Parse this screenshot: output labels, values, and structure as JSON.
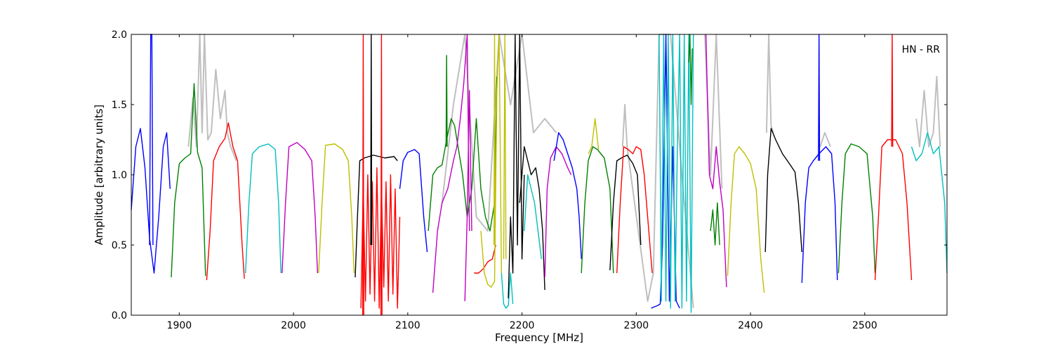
{
  "chart_data": {
    "type": "line",
    "title": "",
    "xlabel": "Frequency [MHz]",
    "ylabel": "Amplitude [arbitrary units]",
    "xlim": [
      1858,
      2572
    ],
    "ylim": [
      0.0,
      2.0
    ],
    "x_ticks": [
      1900,
      2000,
      2100,
      2200,
      2300,
      2400,
      2500
    ],
    "x_tick_labels": [
      "1900",
      "2000",
      "2100",
      "2200",
      "2300",
      "2400",
      "2500"
    ],
    "y_ticks": [
      0.0,
      0.5,
      1.0,
      1.5,
      2.0
    ],
    "y_tick_labels": [
      "0.0",
      "0.5",
      "1.0",
      "1.5",
      "2.0"
    ],
    "annotation": "HN - RR",
    "grid": false,
    "legend": "none",
    "colors": {
      "blue": "#0000ff",
      "green": "#008000",
      "red": "#ff0000",
      "cyan": "#00bfbf",
      "magenta": "#bf00bf",
      "yellow": "#bfbf00",
      "black": "#000000",
      "reference": "#bfbfbf"
    },
    "series": [
      {
        "color": "blue",
        "x": [
          1858,
          1862,
          1866,
          1870,
          1874,
          1878,
          1882,
          1886,
          1889,
          1892
        ],
        "y": [
          0.75,
          1.2,
          1.33,
          1.05,
          0.55,
          0.3,
          0.7,
          1.2,
          1.3,
          0.9
        ]
      },
      {
        "color": "blue",
        "x": [
          1874,
          1875,
          1876,
          1877
        ],
        "y": [
          0.5,
          2.0,
          2.0,
          0.5
        ]
      },
      {
        "color": "green",
        "x": [
          1893,
          1896,
          1900,
          1905,
          1910,
          1913,
          1916,
          1920,
          1923
        ],
        "y": [
          0.27,
          0.8,
          1.08,
          1.12,
          1.15,
          1.65,
          1.16,
          1.05,
          0.28
        ]
      },
      {
        "color": "red",
        "x": [
          1924,
          1927,
          1930,
          1935,
          1940,
          1943,
          1947,
          1951,
          1955,
          1957
        ],
        "y": [
          0.25,
          0.6,
          1.1,
          1.2,
          1.26,
          1.37,
          1.2,
          1.1,
          0.5,
          0.26
        ]
      },
      {
        "color": "cyan",
        "x": [
          1958,
          1961,
          1964,
          1970,
          1978,
          1984,
          1987,
          1989
        ],
        "y": [
          0.3,
          0.8,
          1.15,
          1.2,
          1.22,
          1.18,
          0.8,
          0.3
        ]
      },
      {
        "color": "magenta",
        "x": [
          1990,
          1993,
          1996,
          2003,
          2010,
          2016,
          2019,
          2021
        ],
        "y": [
          0.3,
          0.8,
          1.2,
          1.23,
          1.18,
          1.1,
          0.7,
          0.3
        ]
      },
      {
        "color": "yellow",
        "x": [
          2022,
          2025,
          2028,
          2036,
          2043,
          2048,
          2051,
          2053
        ],
        "y": [
          0.3,
          0.8,
          1.21,
          1.22,
          1.18,
          1.1,
          0.7,
          0.3
        ]
      },
      {
        "color": "black",
        "x": [
          2054,
          2056,
          2058,
          2062,
          2070,
          2080,
          2088,
          2091
        ],
        "y": [
          0.27,
          0.7,
          1.1,
          1.12,
          1.14,
          1.12,
          1.13,
          1.1
        ]
      },
      {
        "color": "red",
        "x": [
          2059,
          2061,
          2063,
          2065,
          2067,
          2069,
          2071,
          2073,
          2075,
          2077,
          2079,
          2081,
          2083,
          2085,
          2087,
          2089,
          2091,
          2093
        ],
        "y": [
          0.05,
          0.9,
          0.1,
          1.0,
          0.15,
          0.95,
          0.1,
          1.05,
          0.05,
          0.9,
          0.2,
          0.95,
          0.1,
          1.0,
          0.15,
          0.9,
          0.05,
          0.7
        ]
      },
      {
        "color": "red",
        "x": [
          2060.5,
          2061,
          2061.5
        ],
        "y": [
          0.0,
          2.0,
          0.0
        ]
      },
      {
        "color": "black",
        "x": [
          2067.5,
          2068,
          2068.5
        ],
        "y": [
          0.5,
          2.0,
          0.5
        ]
      },
      {
        "color": "red",
        "x": [
          2076.5,
          2077,
          2077.5
        ],
        "y": [
          0.0,
          2.0,
          0.0
        ]
      },
      {
        "color": "blue",
        "x": [
          2093,
          2096,
          2100,
          2106,
          2110,
          2114,
          2117
        ],
        "y": [
          0.9,
          1.1,
          1.16,
          1.18,
          1.15,
          0.7,
          0.45
        ]
      },
      {
        "color": "green",
        "x": [
          2118,
          2122,
          2126,
          2130,
          2134,
          2138,
          2141,
          2145,
          2148,
          2152
        ],
        "y": [
          0.6,
          1.0,
          1.05,
          1.07,
          1.25,
          1.4,
          1.35,
          1.15,
          1.0,
          0.7
        ]
      },
      {
        "color": "green",
        "x": [
          2133.5,
          2134,
          2134.5
        ],
        "y": [
          1.2,
          1.85,
          1.2
        ]
      },
      {
        "color": "magenta",
        "x": [
          2122,
          2126,
          2130,
          2135,
          2140,
          2143,
          2146,
          2149,
          2152,
          2154
        ],
        "y": [
          0.16,
          0.6,
          0.8,
          0.9,
          1.1,
          1.2,
          1.4,
          1.65,
          2.0,
          0.6
        ]
      },
      {
        "color": "green",
        "x": [
          2152,
          2156,
          2160,
          2164,
          2168,
          2172,
          2176,
          2178
        ],
        "y": [
          0.7,
          0.9,
          1.4,
          0.9,
          0.7,
          0.6,
          0.8,
          1.7
        ]
      },
      {
        "color": "magenta",
        "x": [
          2150,
          2152,
          2154,
          2156
        ],
        "y": [
          0.1,
          0.7,
          1.6,
          0.6
        ]
      },
      {
        "color": "red",
        "x": [
          2158,
          2162,
          2166,
          2170,
          2174,
          2177
        ],
        "y": [
          0.3,
          0.3,
          0.33,
          0.38,
          0.4,
          0.5
        ]
      },
      {
        "color": "yellow",
        "x": [
          2164,
          2167,
          2170,
          2173,
          2176,
          2178,
          2180,
          2182
        ],
        "y": [
          0.6,
          0.3,
          0.22,
          0.2,
          0.24,
          1.6,
          2.0,
          0.3
        ]
      },
      {
        "color": "yellow",
        "x": [
          2175.5,
          2176,
          2176.5
        ],
        "y": [
          0.5,
          2.0,
          0.5
        ]
      },
      {
        "color": "cyan",
        "x": [
          2182,
          2184,
          2186,
          2188,
          2190,
          2192
        ],
        "y": [
          0.3,
          0.08,
          0.05,
          0.07,
          0.3,
          0.08
        ]
      },
      {
        "color": "yellow",
        "x": [
          2184,
          2185,
          2186
        ],
        "y": [
          0.4,
          2.0,
          0.4
        ]
      },
      {
        "color": "black",
        "x": [
          2188,
          2190,
          2192,
          2194,
          2196,
          2198,
          2200,
          2202
        ],
        "y": [
          0.12,
          0.7,
          0.3,
          2.0,
          0.5,
          2.0,
          0.4,
          1.0
        ]
      },
      {
        "color": "black",
        "x": [
          2198,
          2202,
          2205,
          2208,
          2212,
          2215,
          2218,
          2220
        ],
        "y": [
          0.8,
          1.2,
          1.1,
          1.0,
          1.05,
          0.9,
          0.6,
          0.18
        ]
      },
      {
        "color": "cyan",
        "x": [
          2202,
          2205,
          2208,
          2211,
          2214,
          2217
        ],
        "y": [
          0.6,
          1.0,
          0.9,
          0.8,
          0.6,
          0.4
        ]
      },
      {
        "color": "magenta",
        "x": [
          2220,
          2222,
          2225,
          2230,
          2235,
          2240,
          2243
        ],
        "y": [
          0.27,
          0.9,
          1.12,
          1.2,
          1.15,
          1.05,
          1.0
        ]
      },
      {
        "color": "blue",
        "x": [
          2228,
          2232,
          2236,
          2240,
          2244,
          2248,
          2250,
          2252
        ],
        "y": [
          1.1,
          1.3,
          1.25,
          1.15,
          1.05,
          0.9,
          0.7,
          0.4
        ]
      },
      {
        "color": "green",
        "x": [
          2252,
          2255,
          2258,
          2262,
          2266,
          2272,
          2277,
          2280
        ],
        "y": [
          0.3,
          0.8,
          1.1,
          1.2,
          1.18,
          1.12,
          0.9,
          0.3
        ]
      },
      {
        "color": "yellow",
        "x": [
          2258,
          2261,
          2264,
          2267
        ],
        "y": [
          1.15,
          1.2,
          1.4,
          1.18
        ]
      },
      {
        "color": "black",
        "x": [
          2277,
          2280,
          2283,
          2287,
          2292,
          2297,
          2301,
          2304
        ],
        "y": [
          0.32,
          0.8,
          1.1,
          1.12,
          1.14,
          1.08,
          1.0,
          0.5
        ]
      },
      {
        "color": "red",
        "x": [
          2283,
          2286,
          2289,
          2293,
          2297,
          2300,
          2304,
          2307,
          2311,
          2314
        ],
        "y": [
          0.3,
          0.8,
          1.2,
          1.18,
          1.15,
          1.2,
          1.18,
          1.0,
          0.6,
          0.3
        ]
      },
      {
        "color": "blue",
        "x": [
          2313,
          2316,
          2319,
          2321,
          2323,
          2326,
          2329,
          2332,
          2335,
          2338
        ],
        "y": [
          0.05,
          0.06,
          0.07,
          0.08,
          0.5,
          2.0,
          0.1,
          1.2,
          0.1,
          0.05
        ]
      },
      {
        "color": "cyan",
        "x": [
          2320,
          2322,
          2324,
          2326,
          2328,
          2330,
          2332,
          2334,
          2336,
          2338,
          2340,
          2342,
          2344,
          2346,
          2348,
          2350
        ],
        "y": [
          2.0,
          0.1,
          2.0,
          0.1,
          2.0,
          0.05,
          2.0,
          0.1,
          1.2,
          2.0,
          0.05,
          2.0,
          0.1,
          2.0,
          0.02,
          2.0
        ]
      },
      {
        "color": "green",
        "x": [
          2346,
          2347,
          2348,
          2349
        ],
        "y": [
          1.8,
          2.0,
          1.5,
          1.9
        ]
      },
      {
        "color": "magenta",
        "x": [
          2361,
          2364,
          2367,
          2370,
          2373,
          2376,
          2379
        ],
        "y": [
          2.0,
          1.0,
          0.9,
          1.2,
          0.95,
          0.75,
          0.2
        ]
      },
      {
        "color": "green",
        "x": [
          2365,
          2367,
          2369,
          2371,
          2373
        ],
        "y": [
          0.6,
          0.75,
          0.5,
          0.8,
          0.5
        ]
      },
      {
        "color": "yellow",
        "x": [
          2380,
          2383,
          2386,
          2390,
          2395,
          2400,
          2405,
          2409,
          2412
        ],
        "y": [
          0.28,
          0.8,
          1.15,
          1.2,
          1.15,
          1.08,
          0.9,
          0.4,
          0.16
        ]
      },
      {
        "color": "black",
        "x": [
          2413,
          2415,
          2418,
          2422,
          2428,
          2434,
          2439,
          2442,
          2445
        ],
        "y": [
          0.45,
          1.0,
          1.33,
          1.25,
          1.15,
          1.08,
          1.02,
          0.8,
          0.45
        ]
      },
      {
        "color": "blue",
        "x": [
          2445,
          2448,
          2451,
          2455,
          2460,
          2466,
          2471,
          2474,
          2476
        ],
        "y": [
          0.23,
          0.8,
          1.05,
          1.1,
          1.15,
          1.2,
          1.15,
          0.8,
          0.25
        ]
      },
      {
        "color": "blue",
        "x": [
          2459.5,
          2460,
          2460.5
        ],
        "y": [
          1.1,
          2.0,
          1.1
        ]
      },
      {
        "color": "green",
        "x": [
          2477,
          2480,
          2483,
          2488,
          2495,
          2502,
          2507,
          2509
        ],
        "y": [
          0.3,
          0.8,
          1.15,
          1.22,
          1.2,
          1.15,
          0.7,
          0.3
        ]
      },
      {
        "color": "red",
        "x": [
          2509,
          2512,
          2515,
          2520,
          2527,
          2533,
          2537,
          2541
        ],
        "y": [
          0.25,
          0.7,
          1.2,
          1.25,
          1.25,
          1.15,
          0.8,
          0.25
        ]
      },
      {
        "color": "red",
        "x": [
          2523.5,
          2524,
          2524.5
        ],
        "y": [
          1.2,
          2.0,
          1.2
        ]
      },
      {
        "color": "cyan",
        "x": [
          2541,
          2545,
          2550,
          2555,
          2560,
          2565,
          2570,
          2572
        ],
        "y": [
          1.2,
          1.1,
          1.15,
          1.3,
          1.15,
          1.2,
          0.8,
          0.3
        ]
      }
    ],
    "reference_series": [
      {
        "color": "reference",
        "x": [
          1908,
          1912,
          1915,
          1918,
          1920,
          1922,
          1925,
          1928,
          1932,
          1936,
          1940,
          1942,
          1945,
          1950
        ],
        "y": [
          1.2,
          1.55,
          1.2,
          2.0,
          1.3,
          2.0,
          1.25,
          1.3,
          1.75,
          1.4,
          1.6,
          1.3,
          1.2,
          1.1
        ]
      },
      {
        "color": "reference",
        "x": [
          2130,
          2140,
          2150,
          2160,
          2170,
          2180,
          2190,
          2200,
          2210,
          2220,
          2230
        ],
        "y": [
          0.8,
          1.5,
          2.0,
          0.7,
          0.6,
          2.0,
          1.5,
          2.0,
          1.3,
          1.4,
          1.3
        ]
      },
      {
        "color": "reference",
        "x": [
          2288,
          2290,
          2292,
          2310,
          2315,
          2320,
          2330,
          2340,
          2350
        ],
        "y": [
          1.2,
          1.5,
          1.2,
          0.1,
          0.3,
          2.0,
          2.0,
          1.0,
          0.05
        ]
      },
      {
        "color": "reference",
        "x": [
          2360,
          2365,
          2370,
          2375
        ],
        "y": [
          2.0,
          1.0,
          2.0,
          0.9
        ]
      },
      {
        "color": "reference",
        "x": [
          2414,
          2416,
          2418,
          2420
        ],
        "y": [
          1.3,
          2.0,
          1.35,
          1.3
        ]
      },
      {
        "color": "reference",
        "x": [
          2461,
          2465,
          2470
        ],
        "y": [
          1.2,
          1.3,
          1.2
        ]
      },
      {
        "color": "reference",
        "x": [
          2545,
          2548,
          2552,
          2556,
          2560,
          2563,
          2566
        ],
        "y": [
          1.4,
          1.2,
          1.6,
          1.2,
          1.3,
          1.7,
          1.2
        ]
      }
    ]
  }
}
